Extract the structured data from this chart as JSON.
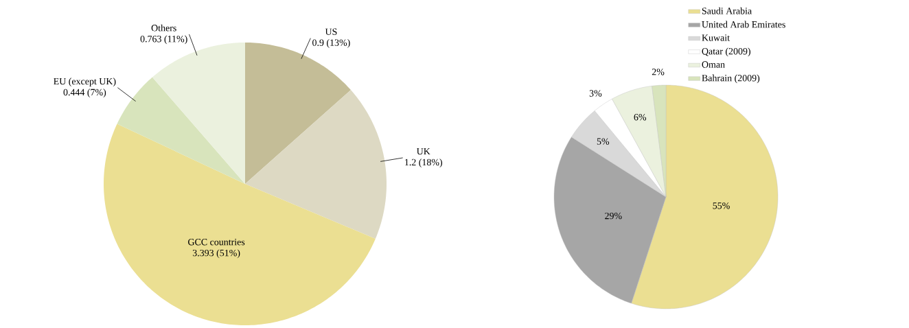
{
  "chart_data": [
    {
      "type": "pie",
      "categories": [
        "US",
        "UK",
        "GCC countries",
        "EU (except UK)",
        "Others"
      ],
      "values": [
        0.9,
        1.2,
        3.393,
        0.444,
        0.763
      ],
      "colors": [
        "#c4bd97",
        "#ddd9c3",
        "#ebdf92",
        "#d8e4bc",
        "#ebf1de"
      ],
      "value_labels": [
        "0.9 (13%)",
        "1.2 (18%)",
        "3.393 (51%)",
        "0.444 (7%)",
        "0.763 (11%)"
      ]
    },
    {
      "type": "pie",
      "categories": [
        "Saudi Arabia",
        "United Arab Emirates",
        "Kuwait",
        "Qatar  (2009)",
        "Oman",
        "Bahrain (2009)"
      ],
      "values": [
        55,
        29,
        5,
        3,
        6,
        2
      ],
      "colors": [
        "#ebdf92",
        "#a6a6a6",
        "#d9d9d9",
        "#ffffff",
        "#ebf1de",
        "#d8e4bc"
      ],
      "value_labels": [
        "55%",
        "29%",
        "5%",
        "3%",
        "6%",
        "2%"
      ],
      "legend": "top right"
    }
  ]
}
